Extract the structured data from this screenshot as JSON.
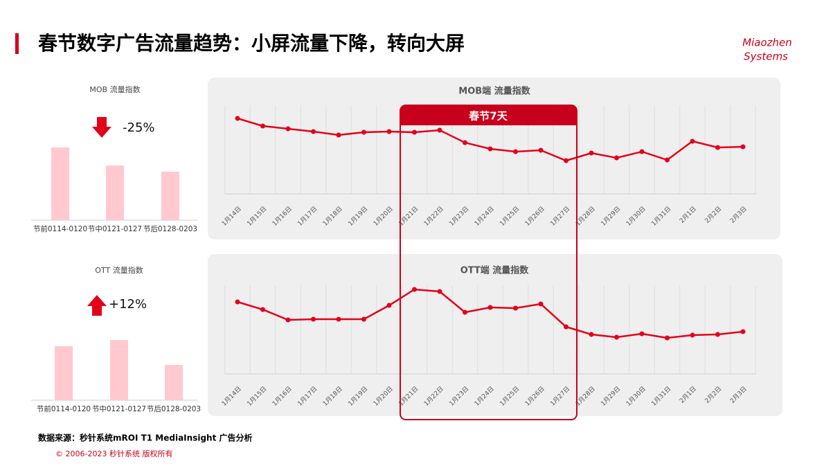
{
  "title": "春节数字广告流量趋势：小屏流量下降，转向大屏",
  "logo": [
    "Miaozhen",
    "Systems"
  ],
  "highlight": "春节7天",
  "source": "数据来源：秒针系统mROI T1 MediaInsight   广告分析",
  "copyright": "© 2006-2023 秒针系统 版权所有",
  "chart_data": [
    {
      "type": "bar",
      "title": "MOB 流量指数",
      "annotation": "-25%",
      "color": "#ffc9cf",
      "categories": [
        "节前0114-0120",
        "节中0121-0127",
        "节后0128-0203"
      ],
      "values": [
        105,
        79,
        70
      ]
    },
    {
      "type": "bar",
      "title": "OTT 流量指数",
      "annotation": "+12%",
      "color": "#ffc9cf",
      "categories": [
        "节前0114-0120",
        "节中0121-0127",
        "节后0128-0203"
      ],
      "values": [
        78,
        87,
        51
      ]
    },
    {
      "type": "line",
      "title": "MOB端 流量指数",
      "color": "#e3001b",
      "categories": [
        "1月14日",
        "1月15日",
        "1月16日",
        "1月17日",
        "1月18日",
        "1月19日",
        "1月20日",
        "1月21日",
        "1月22日",
        "1月23日",
        "1月24日",
        "1月25日",
        "1月26日",
        "1月27日",
        "1月28日",
        "1月29日",
        "1月30日",
        "1月31日",
        "2月1日",
        "2月2日",
        "2月3日"
      ],
      "values": [
        109,
        98,
        94,
        90,
        85,
        89,
        90,
        89,
        92,
        74,
        65,
        61,
        63,
        48,
        59,
        52,
        61,
        49,
        76,
        67,
        68
      ]
    },
    {
      "type": "line",
      "title": "OTT端 流量指数",
      "color": "#e3001b",
      "categories": [
        "1月14日",
        "1月15日",
        "1月16日",
        "1月17日",
        "1月18日",
        "1月19日",
        "1月20日",
        "1月21日",
        "1月22日",
        "1月23日",
        "1月24日",
        "1月25日",
        "1月26日",
        "1月27日",
        "1月28日",
        "1月29日",
        "1月30日",
        "1月31日",
        "2月1日",
        "2月2日",
        "2月3日"
      ],
      "values": [
        104,
        93,
        78,
        79,
        79,
        79,
        99,
        122,
        119,
        89,
        96,
        95,
        101,
        68,
        57,
        53,
        58,
        52,
        56,
        57,
        61
      ]
    }
  ]
}
